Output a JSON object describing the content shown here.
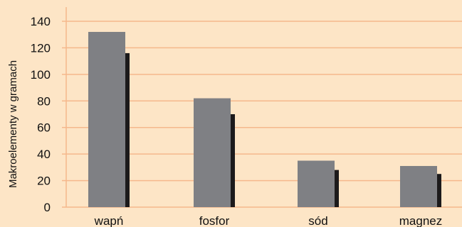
{
  "chart_data": {
    "type": "bar",
    "ylabel": "Makroelementy w gramach",
    "xlabel": "",
    "categories": [
      "wapń",
      "fosfor",
      "sód",
      "magnez"
    ],
    "series": [
      {
        "values": [
          132,
          82,
          35,
          31
        ]
      },
      {
        "values": [
          116,
          70,
          28,
          25
        ]
      }
    ],
    "ylim": [
      0,
      145
    ],
    "yticks": [
      0,
      20,
      40,
      60,
      80,
      100,
      120,
      140
    ],
    "grid": true,
    "legend": "none"
  },
  "colors": {
    "background": "#fde5c6",
    "gridline": "#f5b88c",
    "series_front": "#7f8084",
    "series_back": "#1c1a1b",
    "text": "#111111"
  }
}
